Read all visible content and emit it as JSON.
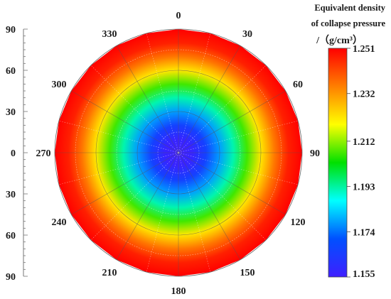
{
  "chart_data": {
    "type": "heatmap",
    "subtype": "polar",
    "angle_ticks": [
      "0",
      "30",
      "60",
      "90",
      "120",
      "150",
      "180",
      "210",
      "240",
      "270",
      "300",
      "330"
    ],
    "radial_axis_ticks": [
      "90",
      "60",
      "30",
      "0",
      "30",
      "60",
      "90"
    ],
    "colorbar": {
      "title_lines": [
        "Equivalent density",
        "of collapse pressure",
        "/（g/cm³）"
      ],
      "ticks": [
        1.251,
        1.232,
        1.212,
        1.193,
        1.174,
        1.155
      ],
      "min": 1.155,
      "max": 1.251,
      "colors": [
        "#ff0000",
        "#ff7f00",
        "#ffff00",
        "#00e000",
        "#00ffff",
        "#0050ff",
        "#3f1fff"
      ]
    },
    "radial_profile": [
      {
        "r": 0,
        "value": 1.155
      },
      {
        "r": 10,
        "value": 1.157
      },
      {
        "r": 20,
        "value": 1.166
      },
      {
        "r": 30,
        "value": 1.178
      },
      {
        "r": 40,
        "value": 1.192
      },
      {
        "r": 50,
        "value": 1.207
      },
      {
        "r": 60,
        "value": 1.222
      },
      {
        "r": 70,
        "value": 1.236
      },
      {
        "r": 80,
        "value": 1.247
      },
      {
        "r": 90,
        "value": 1.251
      }
    ],
    "grid": true
  }
}
